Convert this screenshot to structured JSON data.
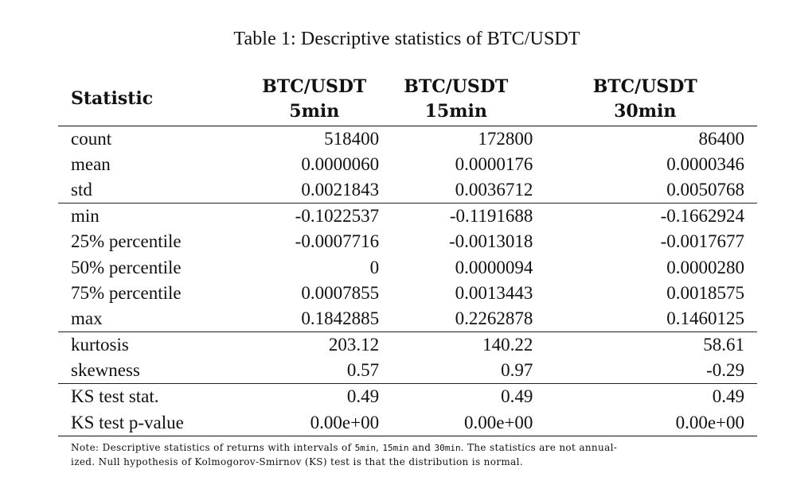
{
  "caption": "Table 1: Descriptive statistics of BTC/USDT",
  "table": {
    "headers": [
      {
        "line1": "Statistic",
        "line2": ""
      },
      {
        "line1": "BTC/USDT",
        "line2": "5min"
      },
      {
        "line1": "BTC/USDT",
        "line2": "15min"
      },
      {
        "line1": "BTC/USDT",
        "line2": "30min"
      }
    ],
    "rows": [
      {
        "label": "count",
        "values": [
          "518400",
          "172800",
          "86400"
        ]
      },
      {
        "label": "mean",
        "values": [
          "0.0000060",
          "0.0000176",
          "0.0000346"
        ]
      },
      {
        "label": "std",
        "values": [
          "0.0021843",
          "0.0036712",
          "0.0050768"
        ]
      },
      {
        "label": "min",
        "values": [
          "-0.1022537",
          "-0.1191688",
          "-0.1662924"
        ]
      },
      {
        "label": "25% percentile",
        "values": [
          "-0.0007716",
          "-0.0013018",
          "-0.0017677"
        ]
      },
      {
        "label": "50% percentile",
        "values": [
          "0",
          "0.0000094",
          "0.0000280"
        ]
      },
      {
        "label": "75% percentile",
        "values": [
          "0.0007855",
          "0.0013443",
          "0.0018575"
        ]
      },
      {
        "label": "max",
        "values": [
          "0.1842885",
          "0.2262878",
          "0.1460125"
        ]
      },
      {
        "label": "kurtosis",
        "values": [
          "203.12",
          "140.22",
          "58.61"
        ]
      },
      {
        "label": "skewness",
        "values": [
          "0.57",
          "0.97",
          "-0.29"
        ]
      },
      {
        "label": "KS test stat.",
        "values": [
          "0.49",
          "0.49",
          "0.49"
        ]
      },
      {
        "label": "KS test p-value",
        "values": [
          "0.00e+00",
          "0.00e+00",
          "0.00e+00"
        ]
      }
    ]
  },
  "note": {
    "prefix": "Note: Descriptive statistics of returns with intervals of ",
    "int1": "5min",
    "sep1": ", ",
    "int2": "15min",
    "sep2": " and ",
    "int3": "30min",
    "suffix_line1": ". The statistics are not annual-",
    "line2": "ized. Null hypothesis of Kolmogorov-Smirnov (KS) test is that the distribution is normal."
  }
}
